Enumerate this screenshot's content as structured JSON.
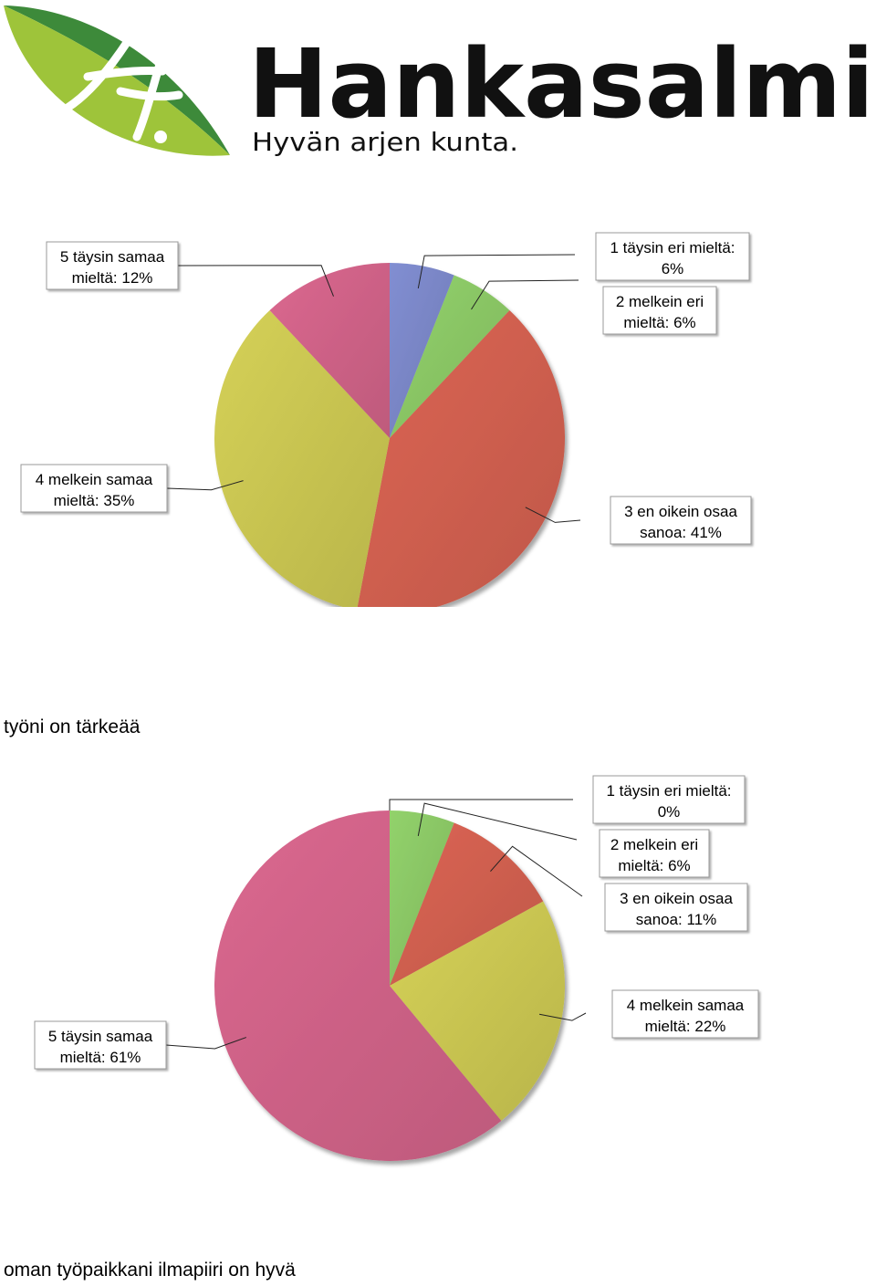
{
  "header": {
    "brand_name": "Hankasalmi",
    "tagline": "Hyvän arjen kunta."
  },
  "colors": {
    "blue": "#7a86c6",
    "green": "#8ac665",
    "red": "#d05f4f",
    "yellow": "#c9c551",
    "pink": "#cf6287",
    "leaf_dark": "#3d8a3a",
    "leaf_light": "#9ec43a",
    "logo_text": "#111111"
  },
  "chart_data": [
    {
      "type": "pie",
      "title": "",
      "slices": [
        {
          "category": "1 täysin eri mieltä",
          "value": 6,
          "label_line1": "1 täysin eri mieltä:",
          "label_line2": "6%",
          "color": "#7a86c6"
        },
        {
          "category": "2 melkein eri mieltä",
          "value": 6,
          "label_line1": "2 melkein eri",
          "label_line2": "mieltä: 6%",
          "color": "#8ac665"
        },
        {
          "category": "3 en oikein osaa sanoa",
          "value": 41,
          "label_line1": "3 en oikein osaa",
          "label_line2": "sanoa: 41%",
          "color": "#d05f4f"
        },
        {
          "category": "4 melkein samaa mieltä",
          "value": 35,
          "label_line1": "4 melkein samaa",
          "label_line2": "mieltä: 35%",
          "color": "#c9c551"
        },
        {
          "category": "5 täysin samaa mieltä",
          "value": 12,
          "label_line1": "5 täysin samaa",
          "label_line2": "mieltä: 12%",
          "color": "#cf6287"
        }
      ],
      "caption": "työni on tärkeää"
    },
    {
      "type": "pie",
      "title": "",
      "slices": [
        {
          "category": "1 täysin eri mieltä",
          "value": 0,
          "label_line1": "1 täysin eri mieltä:",
          "label_line2": "0%",
          "color": "#7a86c6"
        },
        {
          "category": "2 melkein eri mieltä",
          "value": 6,
          "label_line1": "2 melkein eri",
          "label_line2": "mieltä: 6%",
          "color": "#8ac665"
        },
        {
          "category": "3 en oikein osaa sanoa",
          "value": 11,
          "label_line1": "3 en oikein osaa",
          "label_line2": "sanoa: 11%",
          "color": "#d05f4f"
        },
        {
          "category": "4 melkein samaa mieltä",
          "value": 22,
          "label_line1": "4 melkein samaa",
          "label_line2": "mieltä: 22%",
          "color": "#c9c551"
        },
        {
          "category": "5 täysin samaa mieltä",
          "value": 61,
          "label_line1": "5 täysin samaa",
          "label_line2": "mieltä: 61%",
          "color": "#cf6287"
        }
      ],
      "caption": "oman työpaikkani ilmapiiri on hyvä"
    }
  ]
}
